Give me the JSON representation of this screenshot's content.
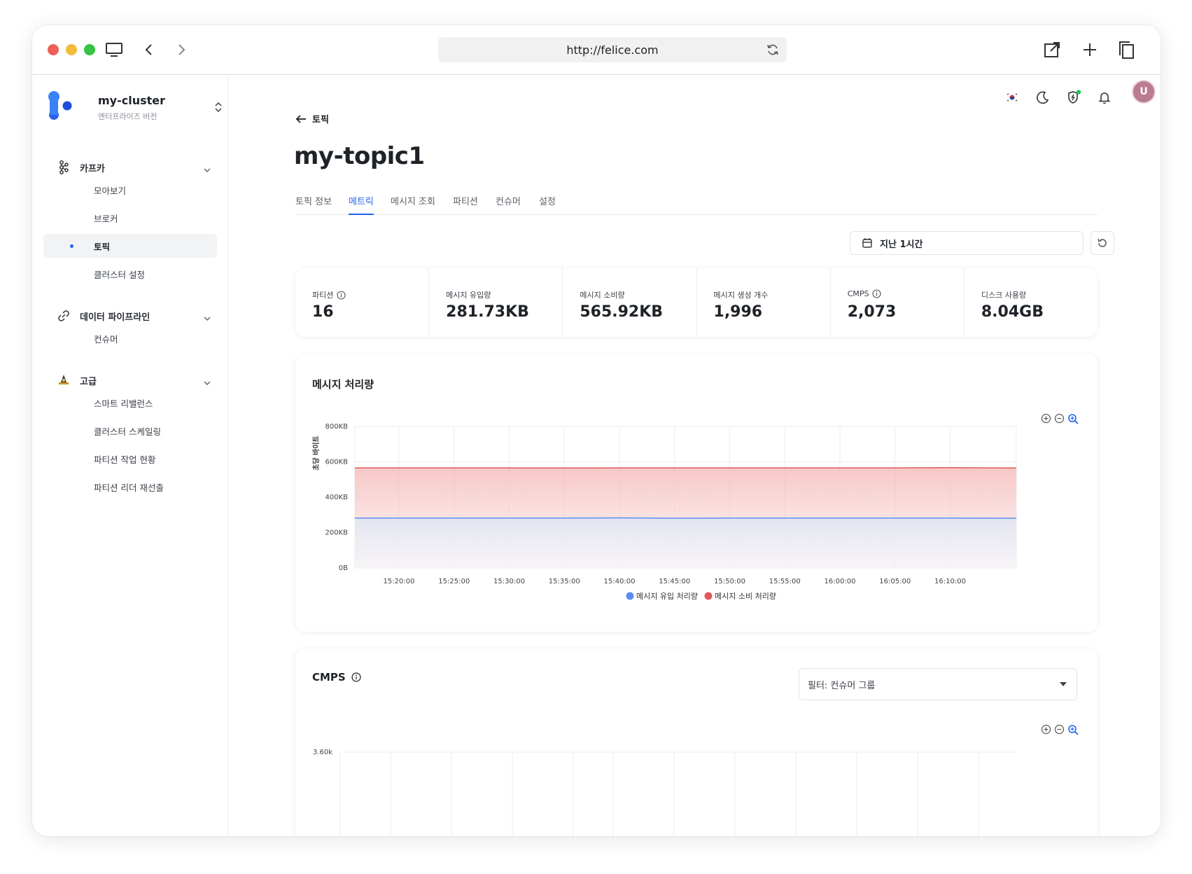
{
  "browser": {
    "url": "http://felice.com"
  },
  "sidebar": {
    "cluster_name": "my-cluster",
    "cluster_edition": "엔터프라이즈 버전",
    "groups": [
      {
        "label": "카프카",
        "icon": "kafka-icon",
        "items": [
          "모아보기",
          "브로커",
          "토픽",
          "클러스터 설정"
        ]
      },
      {
        "label": "데이터 파이프라인",
        "icon": "link-icon",
        "items": [
          "컨슈머"
        ]
      },
      {
        "label": "고급",
        "icon": "wizard-icon",
        "items": [
          "스마트 리밸런스",
          "클러스터 스케일링",
          "파티션 작업 현황",
          "파티션 리더 재선출"
        ]
      }
    ],
    "active_item": "토픽"
  },
  "header": {
    "avatar_initial": "U",
    "icons": [
      "korea-flag-icon",
      "moon-icon",
      "shield-icon",
      "bell-icon"
    ]
  },
  "page": {
    "back_label": "토픽",
    "title": "my-topic1",
    "tabs": [
      "토픽 정보",
      "메트릭",
      "메시지 조회",
      "파티션",
      "컨슈머",
      "설정"
    ],
    "active_tab": "메트릭",
    "time_range": "지난 1시간"
  },
  "stats": [
    {
      "label": "파티션",
      "value": "16",
      "info": true
    },
    {
      "label": "메시지 유입량",
      "value": "281.73KB",
      "info": false
    },
    {
      "label": "메시지 소비량",
      "value": "565.92KB",
      "info": false
    },
    {
      "label": "메시지 생성 개수",
      "value": "1,996",
      "info": false
    },
    {
      "label": "CMPS",
      "value": "2,073",
      "info": true
    },
    {
      "label": "디스크 사용량",
      "value": "8.04GB",
      "info": false
    }
  ],
  "throughput_chart": {
    "title": "메시지 처리량",
    "chart_data": {
      "type": "area",
      "title": "메시지 처리량",
      "ylabel": "초당 바이트",
      "xlabel": "",
      "y_tick_labels": [
        "0B",
        "200KB",
        "400KB",
        "600KB",
        "800KB"
      ],
      "ylim": [
        0,
        800
      ],
      "y_unit": "KB",
      "x_tick_labels": [
        "15:20:00",
        "15:25:00",
        "15:30:00",
        "15:35:00",
        "15:40:00",
        "15:45:00",
        "15:50:00",
        "15:55:00",
        "16:00:00",
        "16:05:00",
        "16:10:00"
      ],
      "x": [
        "15:16:00",
        "15:20:00",
        "15:25:00",
        "15:30:00",
        "15:35:00",
        "15:40:00",
        "15:45:00",
        "15:50:00",
        "15:55:00",
        "16:00:00",
        "16:05:00",
        "16:10:00",
        "16:16:00"
      ],
      "series": [
        {
          "name": "메시지 유입 처리량",
          "color": "#5b8def",
          "values": [
            282,
            282,
            282,
            282,
            282,
            283,
            281,
            282,
            282,
            282,
            282,
            282,
            281
          ]
        },
        {
          "name": "메시지 소비 처리량",
          "color": "#e05a5a",
          "values": [
            566,
            566,
            566,
            566,
            565,
            566,
            566,
            566,
            566,
            566,
            566,
            567,
            565
          ]
        }
      ],
      "legend": "bottom",
      "grid": true
    }
  },
  "cmps_chart": {
    "title": "CMPS",
    "filter_label": "필터: 컨슈머 그룹",
    "chart_data": {
      "type": "line",
      "title": "CMPS",
      "y_tick_labels": [
        "3.60k"
      ],
      "grid": true
    }
  }
}
